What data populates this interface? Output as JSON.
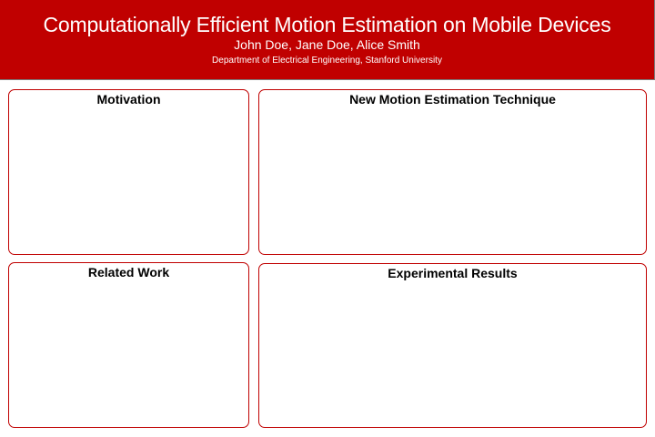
{
  "header": {
    "title": "Computationally Efficient Motion Estimation on Mobile Devices",
    "authors": "John Doe, Jane Doe, Alice Smith",
    "affiliation": "Department of Electrical Engineering, Stanford University"
  },
  "sections": {
    "motivation": {
      "heading": "Motivation"
    },
    "new_technique": {
      "heading": "New Motion Estimation Technique"
    },
    "related_work": {
      "heading": "Related Work"
    },
    "experimental_results": {
      "heading": "Experimental Results"
    }
  },
  "colors": {
    "header_background": "#c00000",
    "panel_border": "#c00000",
    "header_text": "#ffffff"
  }
}
